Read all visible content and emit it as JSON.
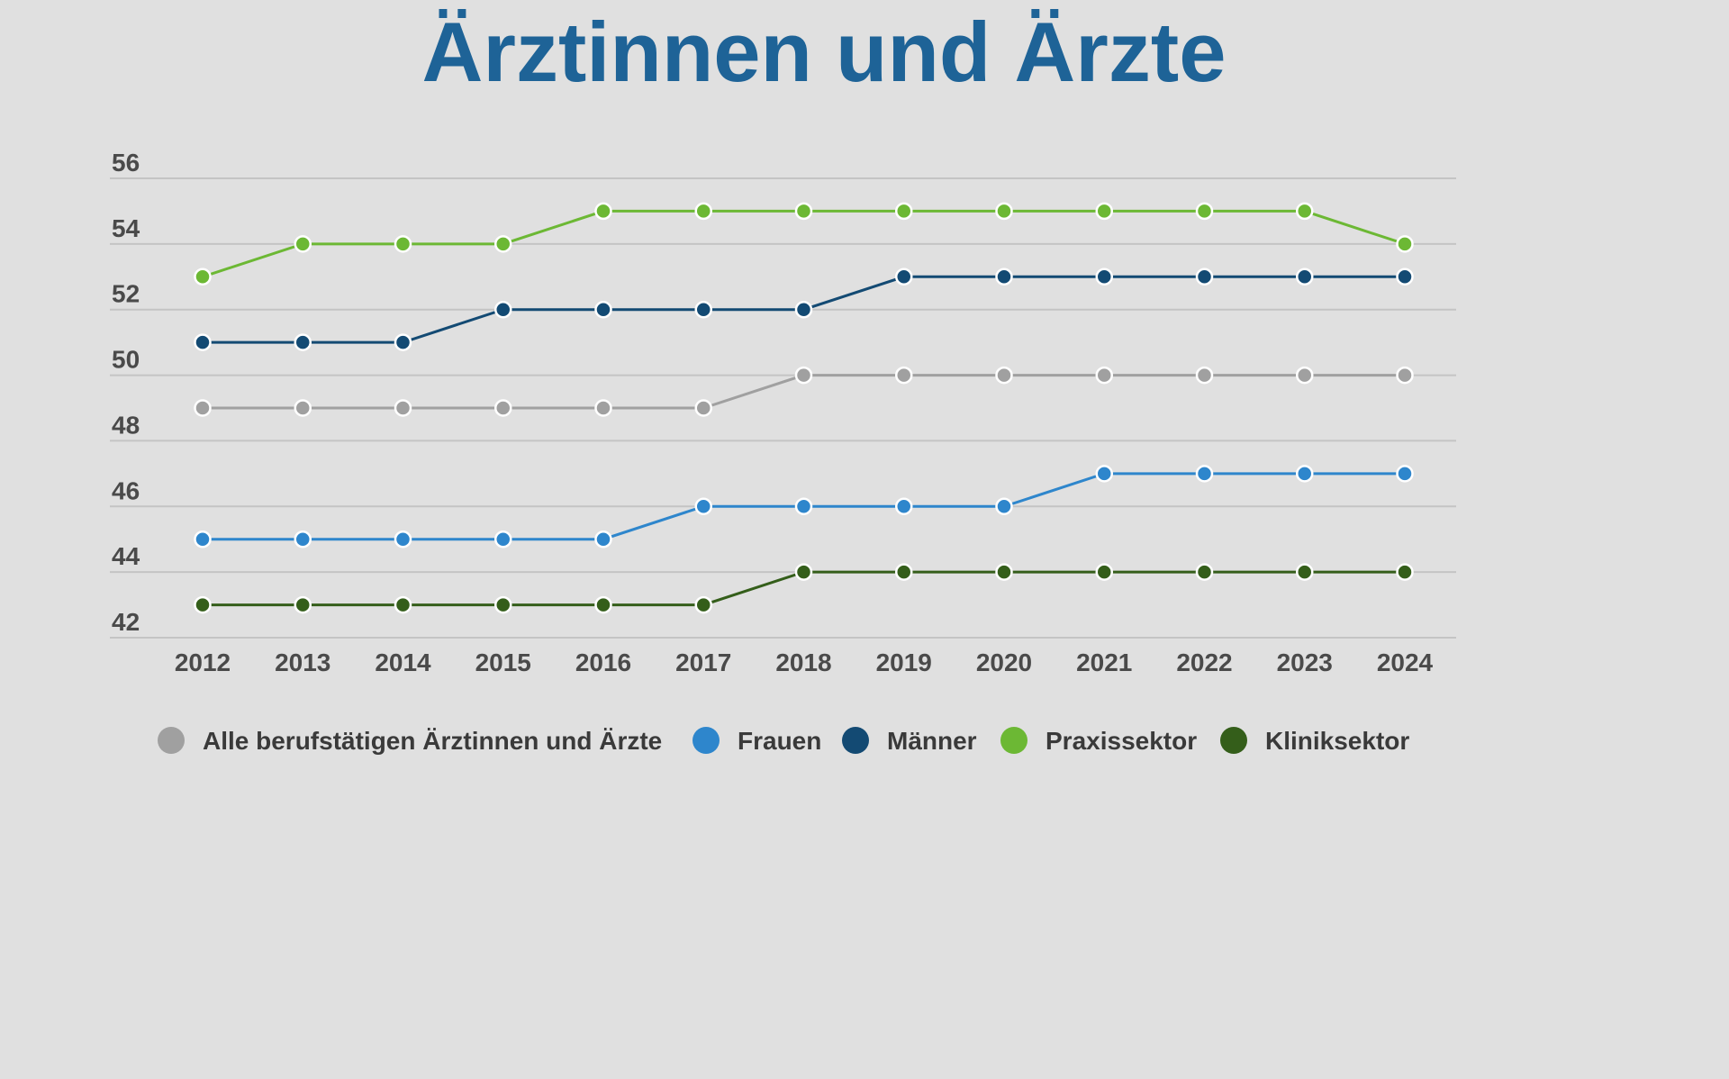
{
  "chart_data": {
    "type": "line",
    "title": "Ärztinnen und Ärzte",
    "x": [
      "2012",
      "2013",
      "2014",
      "2015",
      "2016",
      "2017",
      "2018",
      "2019",
      "2020",
      "2021",
      "2022",
      "2023",
      "2024"
    ],
    "ylim": [
      42,
      56
    ],
    "yticks": [
      56,
      54,
      52,
      50,
      48,
      46,
      44,
      42
    ],
    "grid": true,
    "legend_position": "bottom",
    "series": [
      {
        "name": "Alle berufstätigen Ärztinnen und Ärzte",
        "color": "#a0a0a0",
        "values": [
          49,
          49,
          49,
          49,
          49,
          49,
          50,
          50,
          50,
          50,
          50,
          50,
          50
        ]
      },
      {
        "name": "Frauen",
        "color": "#2e86cc",
        "values": [
          45,
          45,
          45,
          45,
          45,
          46,
          46,
          46,
          46,
          47,
          47,
          47,
          47
        ]
      },
      {
        "name": "Männer",
        "color": "#134a73",
        "values": [
          51,
          51,
          51,
          52,
          52,
          52,
          52,
          53,
          53,
          53,
          53,
          53,
          53
        ]
      },
      {
        "name": "Praxissektor",
        "color": "#6cb834",
        "values": [
          53,
          54,
          54,
          54,
          55,
          55,
          55,
          55,
          55,
          55,
          55,
          55,
          54
        ]
      },
      {
        "name": "Kliniksektor",
        "color": "#345e1a",
        "values": [
          43,
          43,
          43,
          43,
          43,
          43,
          44,
          44,
          44,
          44,
          44,
          44,
          44
        ]
      }
    ]
  }
}
